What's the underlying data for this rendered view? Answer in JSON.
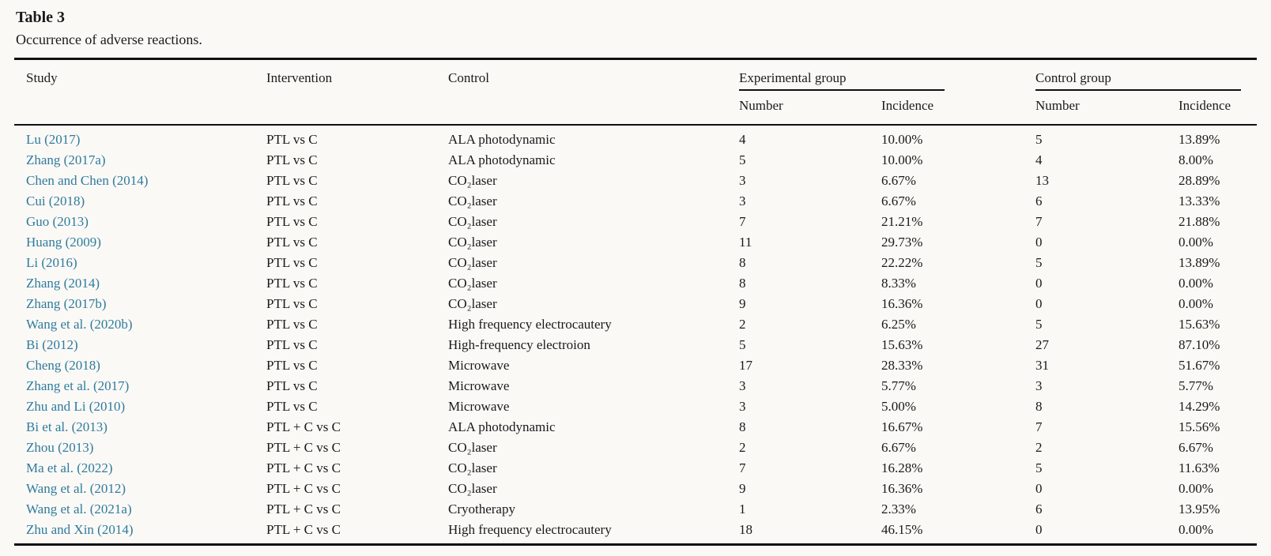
{
  "title": "Table 3",
  "caption": "Occurrence of adverse reactions.",
  "colors": {
    "background": "#fbf9f6",
    "text": "#1a1a1a",
    "rule": "#111111",
    "study_link": "#2e7b9d"
  },
  "table": {
    "headers": {
      "study": "Study",
      "intervention": "Intervention",
      "control": "Control",
      "experimental_group": "Experimental group",
      "control_group": "Control group",
      "exp_number": "Number",
      "exp_incidence": "Incidence",
      "ctrl_number": "Number",
      "ctrl_incidence": "Incidence"
    },
    "rows": [
      {
        "study": "Lu (2017)",
        "intervention": "PTL vs C",
        "control": "ALA photodynamic",
        "exp_number": "4",
        "exp_incidence": "10.00%",
        "ctrl_number": "5",
        "ctrl_incidence": "13.89%"
      },
      {
        "study": "Zhang (2017a)",
        "intervention": "PTL vs C",
        "control": "ALA photodynamic",
        "exp_number": "5",
        "exp_incidence": "10.00%",
        "ctrl_number": "4",
        "ctrl_incidence": "8.00%"
      },
      {
        "study": "Chen and Chen (2014)",
        "intervention": "PTL vs C",
        "control": "CO₂laser",
        "exp_number": "3",
        "exp_incidence": "6.67%",
        "ctrl_number": "13",
        "ctrl_incidence": "28.89%"
      },
      {
        "study": "Cui (2018)",
        "intervention": "PTL vs C",
        "control": "CO₂laser",
        "exp_number": "3",
        "exp_incidence": "6.67%",
        "ctrl_number": "6",
        "ctrl_incidence": "13.33%"
      },
      {
        "study": "Guo (2013)",
        "intervention": "PTL vs C",
        "control": "CO₂laser",
        "exp_number": "7",
        "exp_incidence": "21.21%",
        "ctrl_number": "7",
        "ctrl_incidence": "21.88%"
      },
      {
        "study": "Huang (2009)",
        "intervention": "PTL vs C",
        "control": "CO₂laser",
        "exp_number": "11",
        "exp_incidence": "29.73%",
        "ctrl_number": "0",
        "ctrl_incidence": "0.00%"
      },
      {
        "study": "Li (2016)",
        "intervention": "PTL vs C",
        "control": "CO₂laser",
        "exp_number": "8",
        "exp_incidence": "22.22%",
        "ctrl_number": "5",
        "ctrl_incidence": "13.89%"
      },
      {
        "study": "Zhang (2014)",
        "intervention": "PTL vs C",
        "control": "CO₂laser",
        "exp_number": "8",
        "exp_incidence": "8.33%",
        "ctrl_number": "0",
        "ctrl_incidence": "0.00%"
      },
      {
        "study": "Zhang (2017b)",
        "intervention": "PTL vs C",
        "control": "CO₂laser",
        "exp_number": "9",
        "exp_incidence": "16.36%",
        "ctrl_number": "0",
        "ctrl_incidence": "0.00%"
      },
      {
        "study": "Wang et al. (2020b)",
        "intervention": "PTL vs C",
        "control": "High frequency electrocautery",
        "exp_number": "2",
        "exp_incidence": "6.25%",
        "ctrl_number": "5",
        "ctrl_incidence": "15.63%"
      },
      {
        "study": "Bi (2012)",
        "intervention": "PTL vs C",
        "control": "High-frequency electroion",
        "exp_number": "5",
        "exp_incidence": "15.63%",
        "ctrl_number": "27",
        "ctrl_incidence": "87.10%"
      },
      {
        "study": "Cheng (2018)",
        "intervention": "PTL vs C",
        "control": "Microwave",
        "exp_number": "17",
        "exp_incidence": "28.33%",
        "ctrl_number": "31",
        "ctrl_incidence": "51.67%"
      },
      {
        "study": "Zhang et al. (2017)",
        "intervention": "PTL vs C",
        "control": "Microwave",
        "exp_number": "3",
        "exp_incidence": "5.77%",
        "ctrl_number": "3",
        "ctrl_incidence": "5.77%"
      },
      {
        "study": "Zhu and Li (2010)",
        "intervention": "PTL vs C",
        "control": "Microwave",
        "exp_number": "3",
        "exp_incidence": "5.00%",
        "ctrl_number": "8",
        "ctrl_incidence": "14.29%"
      },
      {
        "study": "Bi et al. (2013)",
        "intervention": "PTL + C vs C",
        "control": "ALA photodynamic",
        "exp_number": "8",
        "exp_incidence": "16.67%",
        "ctrl_number": "7",
        "ctrl_incidence": "15.56%"
      },
      {
        "study": "Zhou (2013)",
        "intervention": "PTL + C vs C",
        "control": "CO₂laser",
        "exp_number": "2",
        "exp_incidence": "6.67%",
        "ctrl_number": "2",
        "ctrl_incidence": "6.67%"
      },
      {
        "study": "Ma et al. (2022)",
        "intervention": "PTL + C vs C",
        "control": "CO₂laser",
        "exp_number": "7",
        "exp_incidence": "16.28%",
        "ctrl_number": "5",
        "ctrl_incidence": "11.63%"
      },
      {
        "study": "Wang et al. (2012)",
        "intervention": "PTL + C vs C",
        "control": "CO₂laser",
        "exp_number": "9",
        "exp_incidence": "16.36%",
        "ctrl_number": "0",
        "ctrl_incidence": "0.00%"
      },
      {
        "study": "Wang et al. (2021a)",
        "intervention": "PTL + C vs C",
        "control": "Cryotherapy",
        "exp_number": "1",
        "exp_incidence": "2.33%",
        "ctrl_number": "6",
        "ctrl_incidence": "13.95%"
      },
      {
        "study": "Zhu and Xin (2014)",
        "intervention": "PTL + C vs C",
        "control": "High frequency electrocautery",
        "exp_number": "18",
        "exp_incidence": "46.15%",
        "ctrl_number": "0",
        "ctrl_incidence": "0.00%"
      }
    ]
  }
}
